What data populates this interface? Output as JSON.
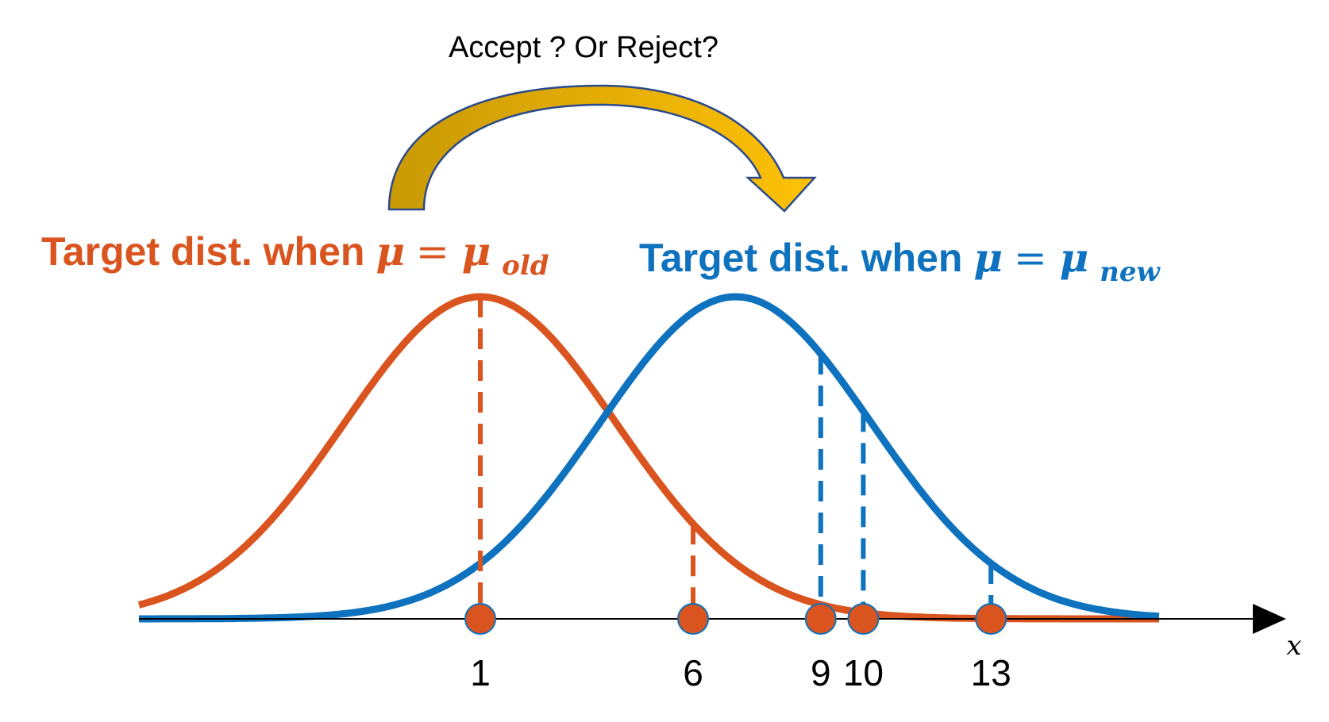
{
  "caption": "Accept ? Or Reject?",
  "colors": {
    "old": "#D9541E",
    "new": "#0E72BE",
    "arrow_fill_left": "#C99A05",
    "arrow_fill_right": "#FFC107",
    "arrow_stroke": "#2B4A8C",
    "axis": "#000000"
  },
  "labels": {
    "old": {
      "prefix": "Target dist. when ",
      "mu": "μ",
      "eq": " = ",
      "mu2": "μ",
      "sub": "old"
    },
    "new": {
      "prefix": "Target dist. when ",
      "mu": "μ",
      "eq": " = ",
      "mu2": "μ",
      "sub": "new"
    }
  },
  "axis": {
    "label": "x"
  },
  "points": [
    {
      "value": 1,
      "label": "1",
      "series": "old"
    },
    {
      "value": 6,
      "label": "6",
      "series": "old"
    },
    {
      "value": 9,
      "label": "9",
      "series": "new"
    },
    {
      "value": 10,
      "label": "10",
      "series": "new"
    },
    {
      "value": 13,
      "label": "13",
      "series": "new"
    }
  ],
  "distributions": {
    "old": {
      "mean": 1,
      "sd": 3.2
    },
    "new": {
      "mean": 7,
      "sd": 3.2
    }
  }
}
